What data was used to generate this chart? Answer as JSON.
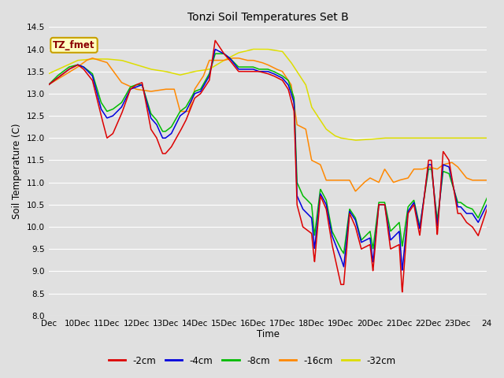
{
  "title": "Tonzi Soil Temperatures Set B",
  "xlabel": "Time",
  "ylabel": "Soil Temperature (C)",
  "ylim": [
    8.0,
    14.5
  ],
  "xlim": [
    0,
    15
  ],
  "background_color": "#e0e0e0",
  "plot_bg_color": "#e0e0e0",
  "grid_color": "#ffffff",
  "annotation_text": "TZ_fmet",
  "annotation_fg": "#8b0000",
  "annotation_bg": "#ffffc0",
  "annotation_border": "#c8a000",
  "series": [
    {
      "label": "-2cm",
      "color": "#dd0000"
    },
    {
      "label": "-4cm",
      "color": "#0000dd"
    },
    {
      "label": "-8cm",
      "color": "#00bb00"
    },
    {
      "label": "-16cm",
      "color": "#ff8800"
    },
    {
      "label": "-32cm",
      "color": "#dddd00"
    }
  ],
  "xtick_labels": [
    "Dec",
    "10Dec",
    "11Dec",
    "12Dec",
    "13Dec",
    "14Dec",
    "15Dec",
    "16Dec",
    "17Dec",
    "18Dec",
    "19Dec",
    "20Dec",
    "21Dec",
    "22Dec",
    "23Dec",
    "24"
  ],
  "xtick_positions": [
    0,
    1,
    2,
    3,
    4,
    5,
    6,
    7,
    8,
    9,
    10,
    11,
    12,
    13,
    14,
    15
  ],
  "ytick_values": [
    8.0,
    8.5,
    9.0,
    9.5,
    10.0,
    10.5,
    11.0,
    11.5,
    12.0,
    12.5,
    13.0,
    13.5,
    14.0,
    14.5
  ]
}
